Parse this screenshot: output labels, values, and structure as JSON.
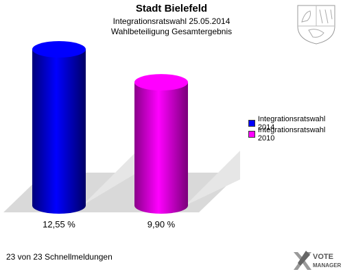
{
  "header": {
    "title": "Stadt Bielefeld",
    "subtitle1": "Integrationsratswahl 25.05.2014",
    "subtitle2": "Wahlbeteiligung Gesamtergebnis"
  },
  "footer": {
    "text": "23 von 23 Schnellmeldungen"
  },
  "logo": {
    "line1": "VOTE",
    "line2": "MANAGER",
    "icon": "vote-manager-x-icon"
  },
  "crest": {
    "icon": "coat-of-arms-icon"
  },
  "chart_data": {
    "type": "bar",
    "title": "Stadt Bielefeld",
    "categories": [
      "Integrationsratswahl 2014",
      "Integrationsratswahl 2010"
    ],
    "values": [
      12.55,
      9.9
    ],
    "value_labels": [
      "12,55 %",
      "9,90 %"
    ],
    "colors": [
      "#0000ff",
      "#ff00ff"
    ],
    "legend": [
      "Integrationsratswahl 2014",
      "Integrationsratswahl 2010"
    ],
    "legend_placement": "right",
    "ylim": [
      0,
      12.55
    ],
    "grid": false
  }
}
